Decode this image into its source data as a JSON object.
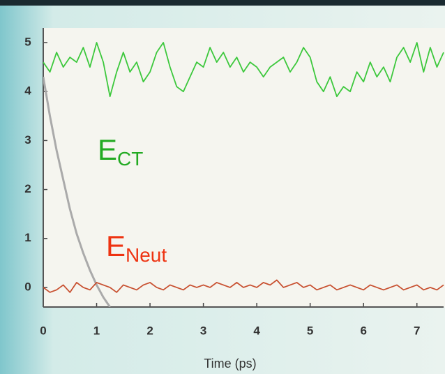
{
  "chart_data": {
    "type": "line",
    "x_label": "Time (ps)",
    "x": [
      0,
      0.125,
      0.25,
      0.375,
      0.5,
      0.625,
      0.75,
      0.875,
      1,
      1.125,
      1.25,
      1.375,
      1.5,
      1.625,
      1.75,
      1.875,
      2,
      2.125,
      2.25,
      2.375,
      2.5,
      2.625,
      2.75,
      2.875,
      3,
      3.125,
      3.25,
      3.375,
      3.5,
      3.625,
      3.75,
      3.875,
      4,
      4.125,
      4.25,
      4.375,
      4.5,
      4.625,
      4.75,
      4.875,
      5,
      5.125,
      5.25,
      5.375,
      5.5,
      5.625,
      5.75,
      5.875,
      6,
      6.125,
      6.25,
      6.375,
      6.5,
      6.625,
      6.75,
      6.875,
      7,
      7.125,
      7.25,
      7.375,
      7.5
    ],
    "series": [
      {
        "color": "#3cc83c",
        "values": [
          4.6,
          4.4,
          4.8,
          4.5,
          4.7,
          4.6,
          4.9,
          4.5,
          5.0,
          4.6,
          3.9,
          4.4,
          4.8,
          4.4,
          4.6,
          4.2,
          4.4,
          4.8,
          5.0,
          4.5,
          4.1,
          4.0,
          4.3,
          4.6,
          4.5,
          4.9,
          4.6,
          4.8,
          4.5,
          4.7,
          4.4,
          4.6,
          4.5,
          4.3,
          4.5,
          4.6,
          4.7,
          4.4,
          4.6,
          4.9,
          4.7,
          4.2,
          4.0,
          4.3,
          3.9,
          4.1,
          4.0,
          4.4,
          4.2,
          4.6,
          4.3,
          4.5,
          4.2,
          4.7,
          4.9,
          4.6,
          5.0,
          4.4,
          4.9,
          4.5,
          4.8
        ]
      },
      {
        "color": "#c85030",
        "values": [
          0.0,
          -0.1,
          -0.05,
          0.05,
          -0.1,
          0.1,
          0.0,
          -0.05,
          0.1,
          0.05,
          0.0,
          -0.1,
          0.05,
          0.0,
          -0.05,
          0.05,
          0.1,
          0.0,
          -0.05,
          0.05,
          0.0,
          -0.05,
          0.05,
          0.0,
          0.05,
          0.0,
          0.1,
          0.05,
          0.0,
          0.1,
          0.0,
          0.05,
          0.0,
          0.1,
          0.05,
          0.15,
          0.0,
          0.05,
          0.1,
          0.0,
          0.05,
          -0.05,
          0.0,
          0.05,
          -0.05,
          0.0,
          0.05,
          0.0,
          -0.05,
          0.05,
          0.0,
          -0.05,
          0.0,
          0.05,
          -0.05,
          0.0,
          0.05,
          -0.05,
          0.0,
          -0.05,
          0.05
        ]
      },
      {
        "color": "#aaaaaa",
        "values": [
          4.3,
          3.5,
          2.8,
          2.2,
          1.6,
          1.1,
          0.7,
          0.35,
          0.05,
          -0.2,
          -0.4,
          null,
          null,
          null,
          null,
          null,
          null,
          null,
          null,
          null,
          null,
          null,
          null,
          null,
          null,
          null,
          null,
          null,
          null,
          null,
          null,
          null,
          null,
          null,
          null,
          null,
          null,
          null,
          null,
          null,
          null,
          null,
          null,
          null,
          null,
          null,
          null,
          null,
          null,
          null,
          null,
          null,
          null,
          null,
          null,
          null,
          null,
          null,
          null,
          null,
          null
        ]
      }
    ],
    "annotations": [
      {
        "text": "E",
        "sub": "CT",
        "color": "#22aa22"
      },
      {
        "text": "E",
        "sub": "Neut",
        "color": "#ee3311"
      }
    ],
    "xlim": [
      0,
      7.5
    ],
    "xticks": [
      0,
      1,
      2,
      3,
      4,
      5,
      6,
      7
    ],
    "ylim": [
      -0.4,
      5.3
    ],
    "yticks": [
      0,
      1,
      2,
      3,
      4,
      5
    ]
  }
}
